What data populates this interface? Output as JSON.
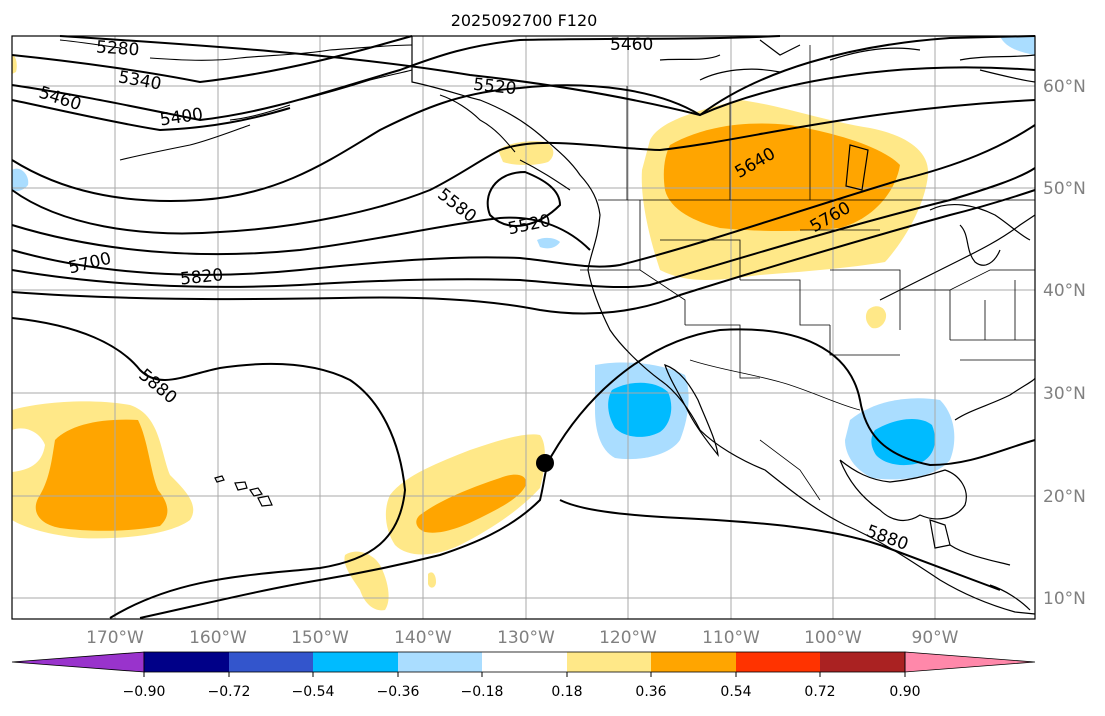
{
  "title": "2025092700 F120",
  "map": {
    "lon_ticks": [
      "170°W",
      "160°W",
      "150°W",
      "140°W",
      "130°W",
      "120°W",
      "110°W",
      "100°W",
      "90°W"
    ],
    "lat_ticks": [
      "60°N",
      "50°N",
      "40°N",
      "30°N",
      "20°N",
      "10°N"
    ],
    "contour_labels": [
      "5280",
      "5340",
      "5400",
      "5460",
      "5460",
      "5520",
      "5520",
      "5580",
      "5640",
      "5700",
      "5760",
      "5820",
      "5880",
      "5880"
    ],
    "colors": {
      "land_outline": "#000000",
      "grid": "#aaaaaa",
      "contour": "#000000",
      "marker": "#000000"
    }
  },
  "colorbar": {
    "ticks": [
      "−0.90",
      "−0.72",
      "−0.54",
      "−0.36",
      "−0.18",
      "0.18",
      "0.36",
      "0.54",
      "0.72",
      "0.90"
    ],
    "colors": [
      "#9933cc",
      "#000088",
      "#3355cc",
      "#00bbff",
      "#aaddff",
      "#ffffff",
      "#ffe888",
      "#ffa500",
      "#ff3300",
      "#aa2222",
      "#ff88aa"
    ]
  }
}
